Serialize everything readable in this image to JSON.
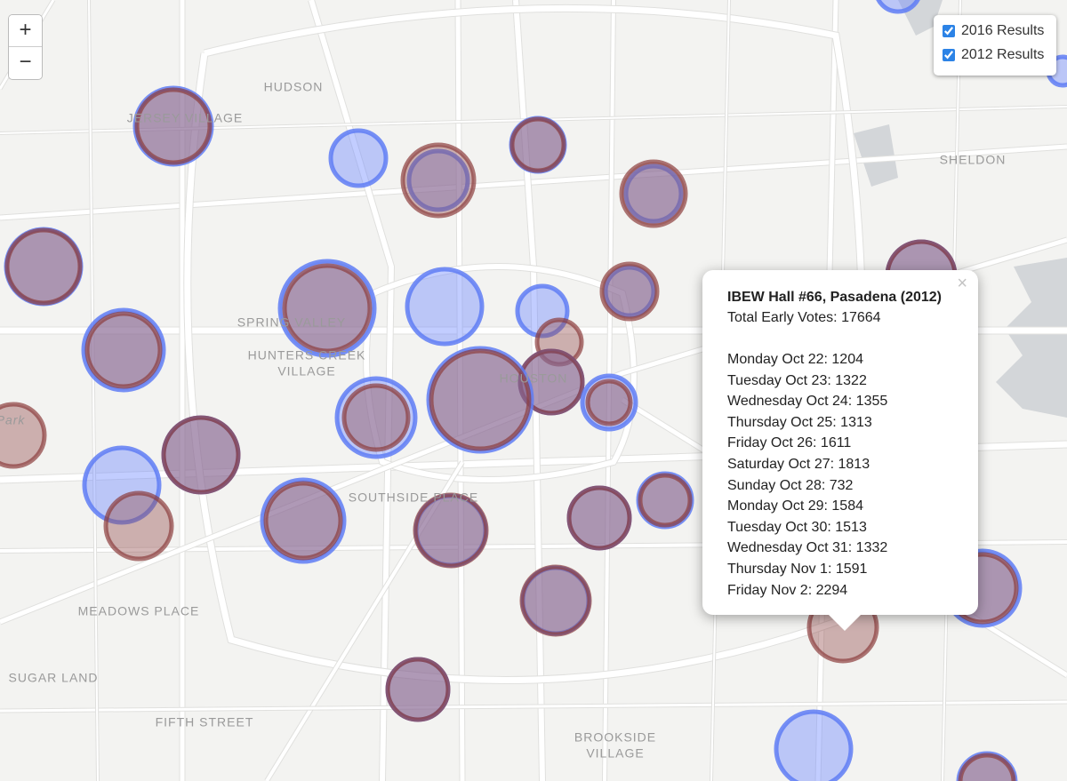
{
  "zoom": {
    "in": "+",
    "out": "−"
  },
  "layers": [
    "2016 Results",
    "2012 Results"
  ],
  "places": [
    {
      "lines": [
        "HUDSON"
      ]
    },
    {
      "lines": [
        "JERSEY VILLAGE"
      ]
    },
    {
      "lines": [
        "SHELDON"
      ]
    },
    {
      "lines": [
        "SPRING VALLEY"
      ]
    },
    {
      "lines": [
        "HUNTERS CREEK",
        "VILLAGE"
      ]
    },
    {
      "lines": [
        "HOUSTON"
      ]
    },
    {
      "lines": [
        "SOUTHSIDE PLACE"
      ]
    },
    {
      "lines": [
        "MEADOWS PLACE"
      ]
    },
    {
      "lines": [
        "SUGAR LAND"
      ]
    },
    {
      "lines": [
        "FIFTH STREET"
      ]
    },
    {
      "lines": [
        "BROOKSIDE",
        "VILLAGE"
      ]
    },
    {
      "lines": [
        "Park"
      ]
    }
  ],
  "popup": {
    "close": "×",
    "title": "IBEW Hall #66, Pasadena (2012)",
    "total": "Total Early Votes: 17664",
    "days": [
      "Monday Oct 22: 1204",
      "Tuesday Oct 23: 1322",
      "Wednesday Oct 24: 1355",
      "Thursday Oct 25: 1313",
      "Friday Oct 26: 1611",
      "Saturday Oct 27: 1813",
      "Sunday Oct 28: 732",
      "Monday Oct 29: 1584",
      "Tuesday Oct 30: 1513",
      "Wednesday Oct 31: 1332",
      "Thursday Nov 1: 1591",
      "Friday Nov 2: 2294"
    ]
  }
}
